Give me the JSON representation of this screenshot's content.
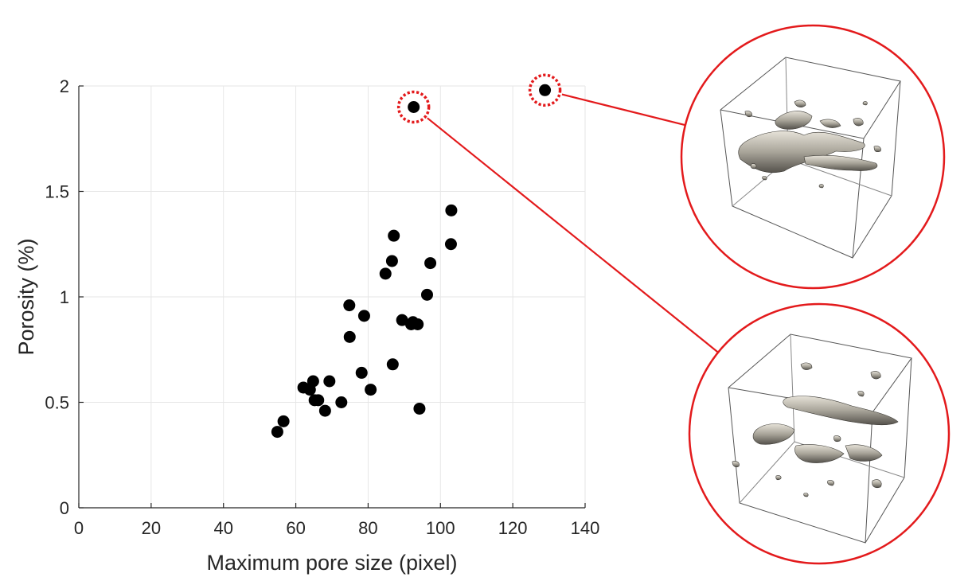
{
  "chart_data": {
    "type": "scatter",
    "title": "",
    "xlabel": "Maximum pore size (pixel)",
    "ylabel": "Porosity (%)",
    "xlim": [
      0,
      140
    ],
    "ylim": [
      0,
      2
    ],
    "xticks": [
      0,
      20,
      40,
      60,
      80,
      100,
      120,
      140
    ],
    "yticks": [
      0,
      0.5,
      1,
      1.5,
      2
    ],
    "xtick_labels": [
      "0",
      "20",
      "40",
      "60",
      "80",
      "100",
      "120",
      "140"
    ],
    "ytick_labels": [
      "0",
      "0.5",
      "1",
      "1.5",
      "2"
    ],
    "grid": true,
    "legend": "none",
    "marker_color": "#000000",
    "highlight_color": "#e31a1c",
    "series": [
      {
        "x": [
          54.9,
          56.6,
          62.1,
          63.9,
          64.8,
          65.2,
          66.2,
          68.1,
          69.3,
          72.6,
          74.8,
          74.9,
          78.2,
          78.9,
          80.7,
          84.8,
          86.6,
          86.8,
          87.1,
          89.4,
          91.9,
          92.4,
          93.7,
          94.2,
          96.3,
          97.2,
          102.9,
          103.0,
          92.6,
          128.9
        ],
        "y": [
          0.36,
          0.41,
          0.57,
          0.56,
          0.6,
          0.51,
          0.51,
          0.46,
          0.6,
          0.5,
          0.96,
          0.81,
          0.64,
          0.91,
          0.56,
          1.11,
          1.17,
          0.68,
          1.29,
          0.89,
          0.87,
          0.88,
          0.87,
          0.47,
          1.01,
          1.16,
          1.25,
          1.41,
          1.9,
          1.98
        ]
      }
    ],
    "highlighted_points": [
      {
        "x": 92.6,
        "y": 1.9,
        "inset": "bottom"
      },
      {
        "x": 128.9,
        "y": 1.98,
        "inset": "top"
      }
    ],
    "insets": [
      {
        "position": "top-right",
        "content": "3D pore structure rendering",
        "linked_point": 1
      },
      {
        "position": "bottom-right",
        "content": "3D pore structure rendering",
        "linked_point": 0
      }
    ]
  }
}
